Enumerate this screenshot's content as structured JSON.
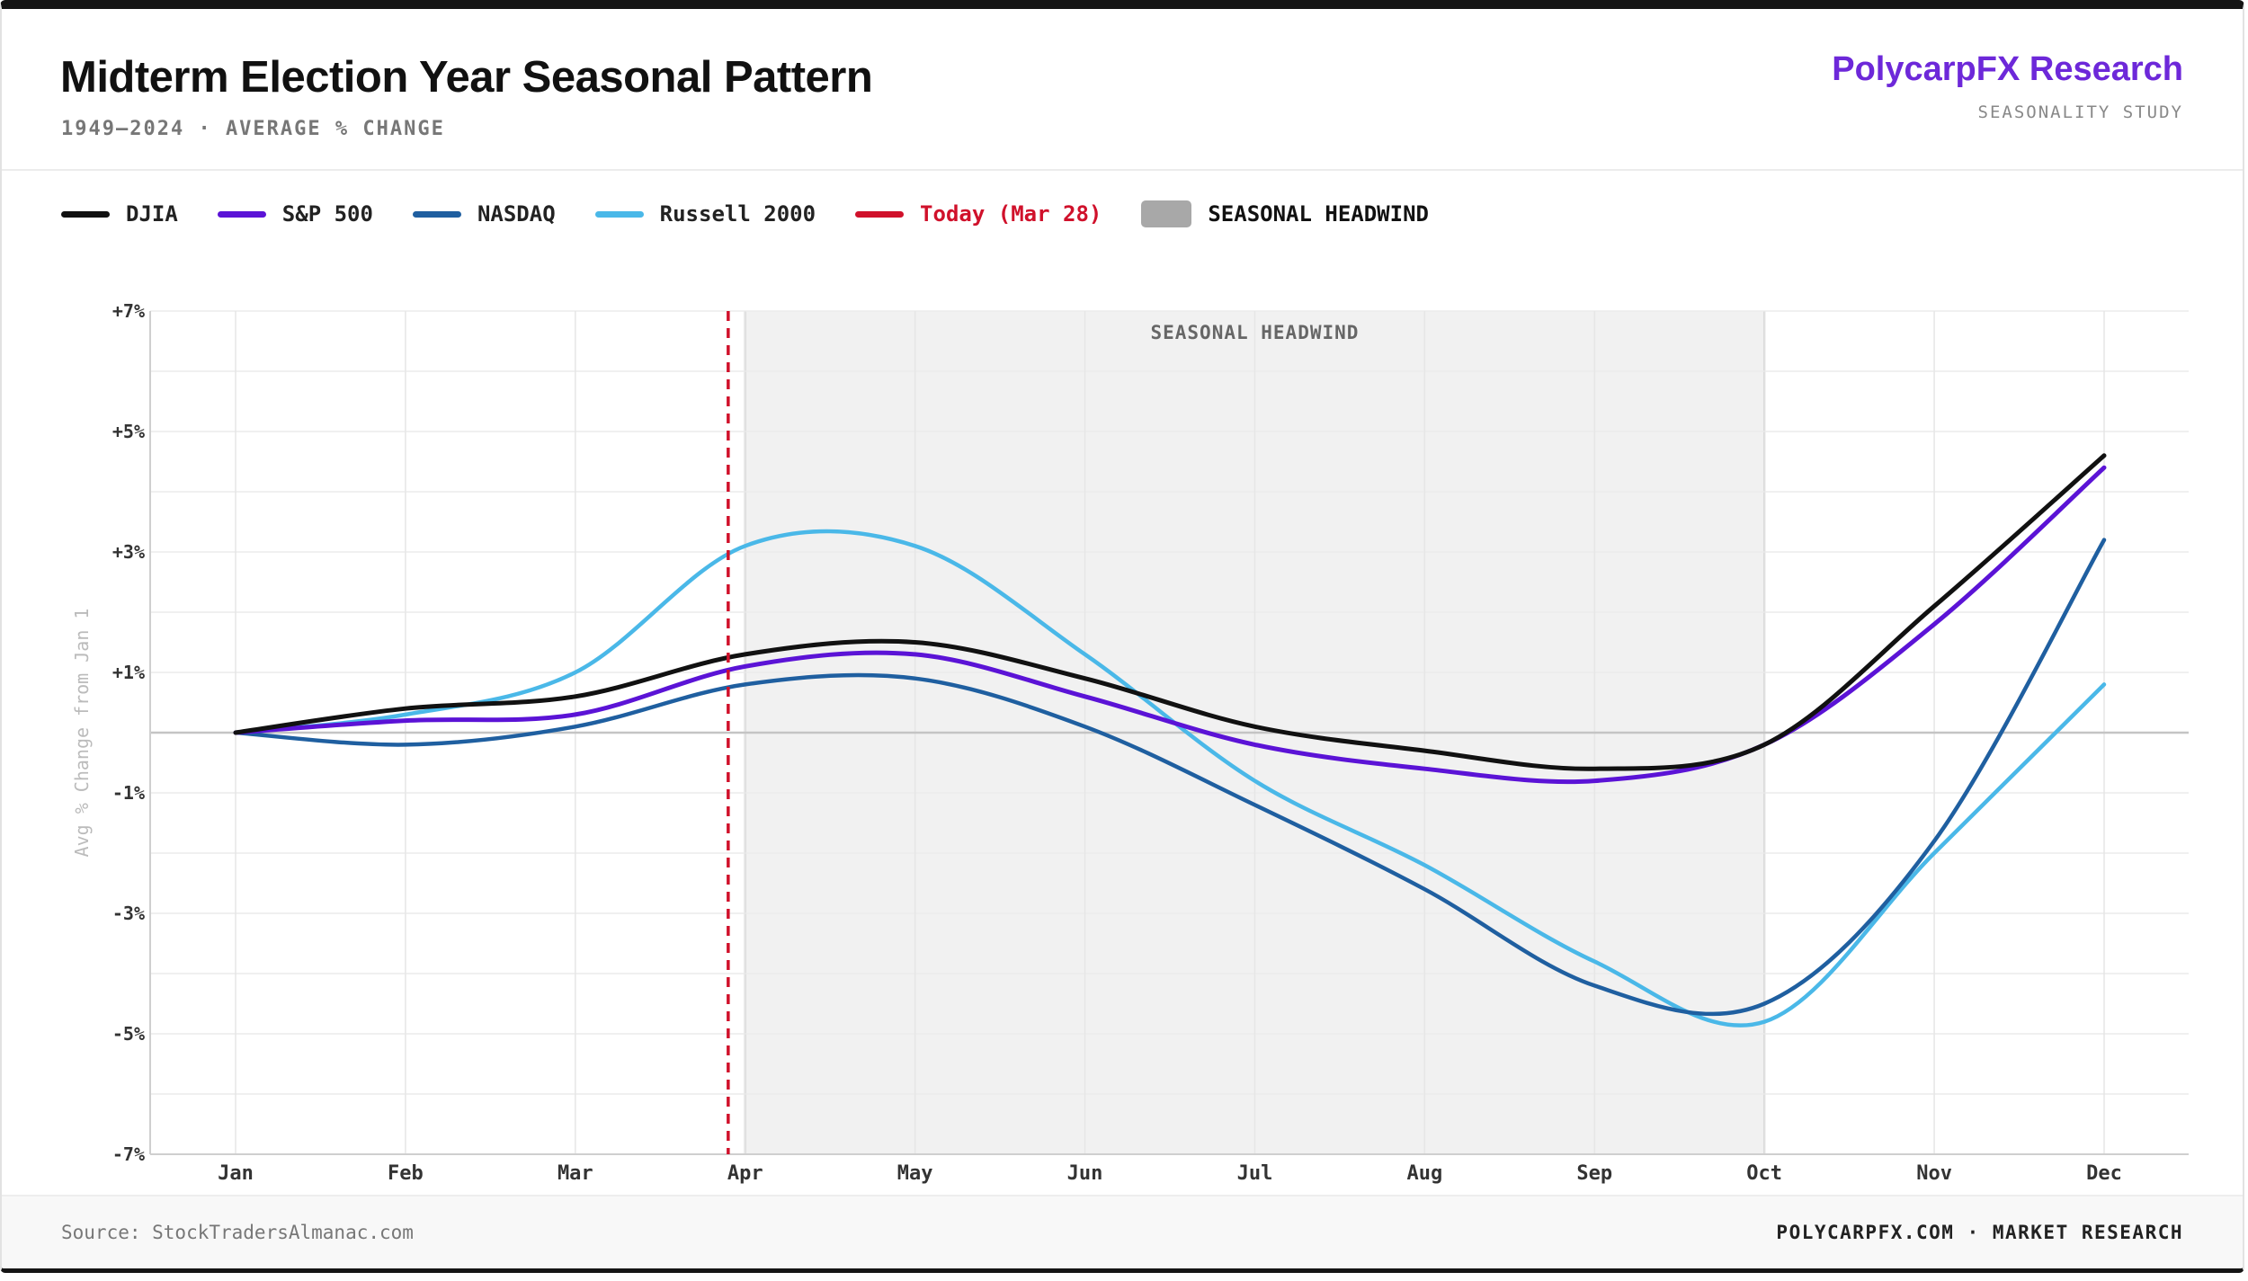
{
  "header": {
    "title": "Midterm Election Year Seasonal Pattern",
    "subtitle": "1949–2024 · AVERAGE % CHANGE",
    "brand": "PolycarpFX Research",
    "brand_sub": "SEASONALITY STUDY"
  },
  "legend": {
    "djia": "DJIA",
    "sp500": "S&P 500",
    "nasdaq": "NASDAQ",
    "russell": "Russell 2000",
    "today": "Today (Mar 28)",
    "headwind": "SEASONAL HEADWIND"
  },
  "footer": {
    "source": "Source: StockTradersAlmanac.com",
    "right": "POLYCARPFX.COM · MARKET RESEARCH"
  },
  "colors": {
    "djia": "#111111",
    "sp500": "#5b13d6",
    "nasdaq": "#1f5fa0",
    "russell": "#4ab8e8",
    "today": "#d0112b",
    "headwind": "#a8a8a8",
    "brand": "#6d28d9"
  },
  "chart_data": {
    "type": "line",
    "title": "Midterm Election Year Seasonal Pattern",
    "ylabel": "Avg % Change from Jan 1",
    "xlabel": "",
    "categories": [
      "Jan",
      "Feb",
      "Mar",
      "Apr",
      "May",
      "Jun",
      "Jul",
      "Aug",
      "Sep",
      "Oct",
      "Nov",
      "Dec"
    ],
    "ylim": [
      -7,
      7
    ],
    "yticks": [
      "+7%",
      "+5%",
      "+3%",
      "+1%",
      "-1%",
      "-3%",
      "-5%",
      "-7%"
    ],
    "ytick_values": [
      7,
      5,
      3,
      1,
      -1,
      -3,
      -5,
      -7
    ],
    "series": [
      {
        "name": "DJIA",
        "key": "djia",
        "values": [
          0.0,
          0.4,
          0.6,
          1.3,
          1.5,
          0.9,
          0.1,
          -0.3,
          -0.6,
          -0.2,
          2.1,
          4.6
        ]
      },
      {
        "name": "S&P 500",
        "key": "sp500",
        "values": [
          0.0,
          0.2,
          0.3,
          1.1,
          1.3,
          0.6,
          -0.2,
          -0.6,
          -0.8,
          -0.2,
          1.8,
          4.4
        ]
      },
      {
        "name": "NASDAQ",
        "key": "nasdaq",
        "values": [
          0.0,
          -0.2,
          0.1,
          0.8,
          0.9,
          0.1,
          -1.2,
          -2.6,
          -4.2,
          -4.5,
          -1.8,
          3.2
        ]
      },
      {
        "name": "Russell 2000",
        "key": "russell",
        "values": [
          0.0,
          0.3,
          1.0,
          3.1,
          3.1,
          1.3,
          -0.8,
          -2.2,
          -3.8,
          -4.8,
          -2.0,
          0.8
        ]
      }
    ],
    "today_marker": {
      "label": "Today (Mar 28)",
      "x": 2.9
    },
    "shaded_region": {
      "label": "SEASONAL HEADWIND",
      "x_start": 3,
      "x_end": 9
    }
  }
}
